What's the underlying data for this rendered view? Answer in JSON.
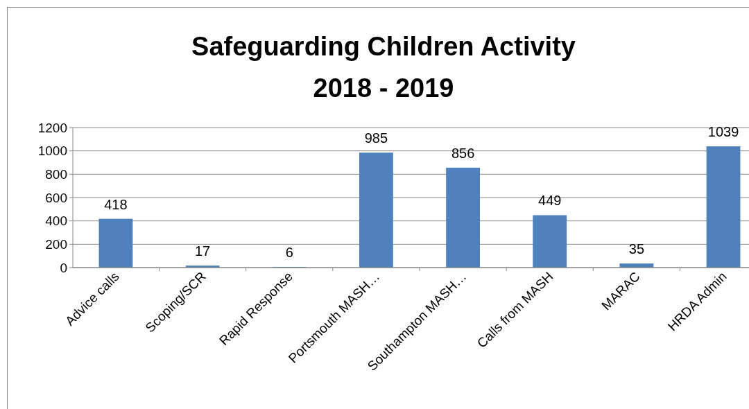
{
  "chart_data": {
    "type": "bar",
    "title": "Safeguarding Children Activity\n2018 - 2019",
    "categories": [
      "Advice calls",
      "Scoping/SCR",
      "Rapid Response",
      "Portsmouth MASH…",
      "Southampton MASH…",
      "Calls from MASH",
      "MARAC",
      "HRDA Admin"
    ],
    "values": [
      418,
      17,
      6,
      985,
      856,
      449,
      35,
      1039
    ],
    "color": "#4f81bd",
    "ylim": [
      0,
      1200
    ],
    "yticks": [
      0,
      200,
      400,
      600,
      800,
      1000,
      1200
    ],
    "grid": "y",
    "data_labels": true
  }
}
